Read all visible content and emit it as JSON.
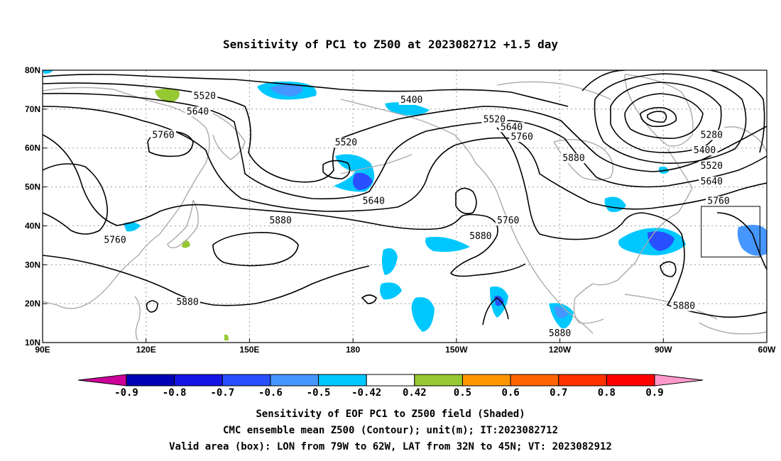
{
  "title": "Sensitivity of PC1 to Z500 at 2023082712 +1.5 day",
  "map": {
    "lon_range": [
      90,
      300
    ],
    "lat_range": [
      10,
      80
    ],
    "lon_ticks": [
      {
        "lon": 90,
        "label": "90E"
      },
      {
        "lon": 120,
        "label": "120E"
      },
      {
        "lon": 150,
        "label": "150E"
      },
      {
        "lon": 180,
        "label": "180"
      },
      {
        "lon": 210,
        "label": "150W"
      },
      {
        "lon": 240,
        "label": "120W"
      },
      {
        "lon": 270,
        "label": "90W"
      },
      {
        "lon": 300,
        "label": "60W"
      }
    ],
    "lat_ticks": [
      {
        "lat": 80,
        "label": "80N"
      },
      {
        "lat": 70,
        "label": "70N"
      },
      {
        "lat": 60,
        "label": "60N"
      },
      {
        "lat": 50,
        "label": "50N"
      },
      {
        "lat": 40,
        "label": "40N"
      },
      {
        "lat": 30,
        "label": "30N"
      },
      {
        "lat": 20,
        "label": "20N"
      },
      {
        "lat": 10,
        "label": "10N"
      }
    ],
    "grid": true,
    "coastline_color": "#aaaaaa",
    "contour_color": "#000000",
    "valid_box": {
      "lon_min": -79,
      "lon_max": -62,
      "lat_min": 32,
      "lat_max": 45
    },
    "contour_labels": [
      {
        "text": "5520",
        "lon": 137,
        "lat": 73
      },
      {
        "text": "5640",
        "lon": 135,
        "lat": 69
      },
      {
        "text": "5760",
        "lon": 125,
        "lat": 63
      },
      {
        "text": "5400",
        "lon": 197,
        "lat": 72
      },
      {
        "text": "5520",
        "lon": 221,
        "lat": 67
      },
      {
        "text": "5640",
        "lon": 226,
        "lat": 65
      },
      {
        "text": "5760",
        "lon": 229,
        "lat": 62.5
      },
      {
        "text": "5520",
        "lon": 178,
        "lat": 61
      },
      {
        "text": "5640",
        "lon": 186,
        "lat": 46
      },
      {
        "text": "5880",
        "lon": 244,
        "lat": 57
      },
      {
        "text": "5280",
        "lon": 284,
        "lat": 63
      },
      {
        "text": "5400",
        "lon": 282,
        "lat": 59
      },
      {
        "text": "5520",
        "lon": 284,
        "lat": 55
      },
      {
        "text": "5640",
        "lon": 284,
        "lat": 51
      },
      {
        "text": "5760",
        "lon": 286,
        "lat": 46
      },
      {
        "text": "5880",
        "lon": 159,
        "lat": 41
      },
      {
        "text": "5760",
        "lon": 111,
        "lat": 36
      },
      {
        "text": "5880",
        "lon": 217,
        "lat": 37
      },
      {
        "text": "5760",
        "lon": 225,
        "lat": 41
      },
      {
        "text": "5880",
        "lon": 132,
        "lat": 20
      },
      {
        "text": "5880",
        "lon": 240,
        "lat": 12
      },
      {
        "text": "5880",
        "lon": 276,
        "lat": 19
      }
    ]
  },
  "colorbar": {
    "labels": [
      "-0.9",
      "-0.8",
      "-0.7",
      "-0.6",
      "-0.5",
      "-0.42",
      "0.42",
      "0.5",
      "0.6",
      "0.7",
      "0.8",
      "0.9"
    ],
    "colors": [
      "#cc0099",
      "#0000b4",
      "#1414e6",
      "#2850ff",
      "#4696ff",
      "#00c8ff",
      "#ffffff",
      "#96c832",
      "#ff9600",
      "#ff6400",
      "#ff3200",
      "#ff0000",
      "#ff99cc"
    ]
  },
  "captions": {
    "line1": "Sensitivity of EOF PC1 to Z500 field (Shaded)",
    "line2": "CMC ensemble mean Z500 (Contour); unit(m); IT:2023082712",
    "line3": "Valid area (box): LON from 79W to 62W, LAT from 32N to 45N; VT: 2023082912"
  }
}
